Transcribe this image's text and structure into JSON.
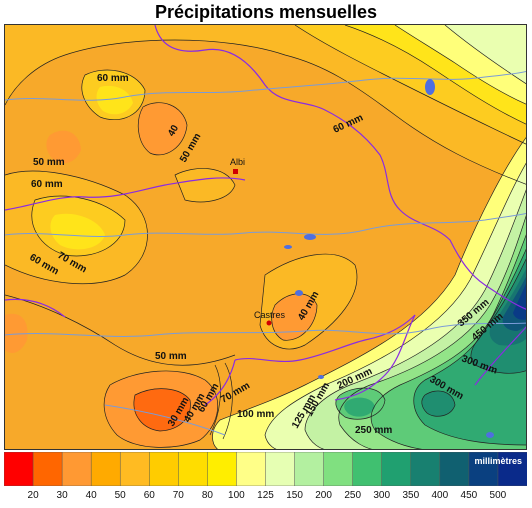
{
  "title": "Précipitations mensuelles",
  "legend": {
    "unit": "millimètres",
    "classes": [
      {
        "label": "20",
        "color": "#ff0000"
      },
      {
        "label": "30",
        "color": "#ff6600"
      },
      {
        "label": "40",
        "color": "#ff9933"
      },
      {
        "label": "50",
        "color": "#ffaa00"
      },
      {
        "label": "60",
        "color": "#ffbb22"
      },
      {
        "label": "70",
        "color": "#ffcc00"
      },
      {
        "label": "80",
        "color": "#ffdd00"
      },
      {
        "label": "100",
        "color": "#ffee00"
      },
      {
        "label": "125",
        "color": "#ffff88"
      },
      {
        "label": "150",
        "color": "#e6ffb3"
      },
      {
        "label": "200",
        "color": "#b3f0a0"
      },
      {
        "label": "250",
        "color": "#80e080"
      },
      {
        "label": "300",
        "color": "#40c070"
      },
      {
        "label": "350",
        "color": "#20a070"
      },
      {
        "label": "400",
        "color": "#188070"
      },
      {
        "label": "450",
        "color": "#106070"
      },
      {
        "label": "500",
        "color": "#0a4080"
      },
      {
        "label": "",
        "color": "#0a2a8a"
      }
    ]
  },
  "cities": [
    {
      "name": "Albi"
    },
    {
      "name": "Castres"
    }
  ],
  "contour_labels": [
    "60 mm",
    "40",
    "50 mm",
    "60 mm",
    "50 mm",
    "60 mm",
    "70 mm",
    "60 mm",
    "40 mm",
    "50 mm",
    "30 mm",
    "40 mm",
    "60 mm",
    "70 mm",
    "100 mm",
    "125 mm",
    "150 mm",
    "200 mm",
    "250 mm",
    "300 mm",
    "300 mm",
    "350 mm",
    "450 mm"
  ]
}
